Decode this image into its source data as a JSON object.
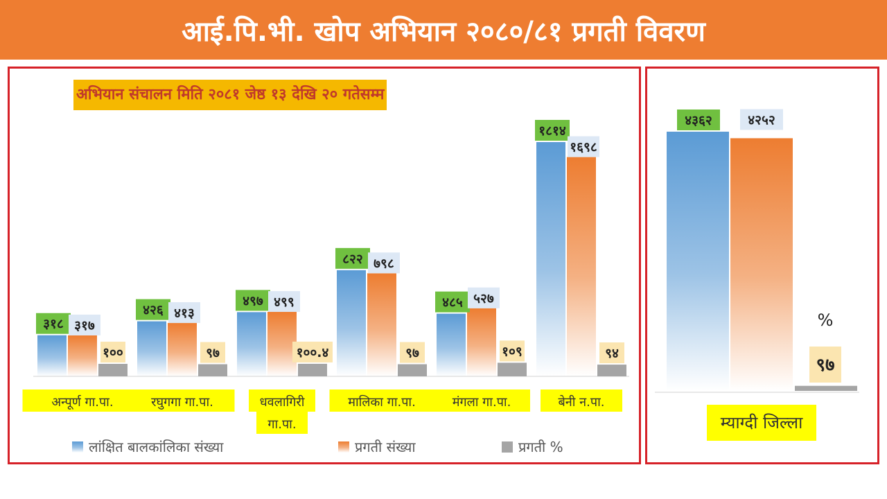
{
  "header": {
    "title": "आई.पि.भी. खोप अभियान २०८०/८१ प्रगती विवरण"
  },
  "colors": {
    "header_bg": "#ee7d31",
    "panel_border": "#d62128",
    "target": "#5b9bd5",
    "progress": "#ed7d31",
    "percent": "#a5a5a5",
    "label_highlight": "#ffff00",
    "target_label_bg": "#70c040",
    "progress_label_bg": "#dde8f5",
    "percent_label_bg": "#fbe5b0"
  },
  "chart_data": [
    {
      "type": "bar",
      "title": "अभियान संचालन मिति २०८१ जेष्ठ १३ देखि २० गतेसम्म",
      "categories": [
        "अन्पूर्ण गा.पा.",
        "रघुगगा गा.पा.",
        "धवलागिरी गा.पा.",
        "मालिका गा.पा.",
        "मंगला गा.पा.",
        "बेनी न.पा."
      ],
      "legend_position": "bottom",
      "grid": false,
      "series": [
        {
          "name": "लांक्षित बालकांलिका संख्या",
          "values": [
            318,
            426,
            497,
            822,
            485,
            1814
          ],
          "labels": [
            "३१८",
            "४२६",
            "४९७",
            "८२२",
            "४८५",
            "१८१४"
          ]
        },
        {
          "name": "प्रगती संख्या",
          "values": [
            317,
            413,
            499,
            798,
            527,
            1698
          ],
          "labels": [
            "३१७",
            "४१३",
            "४९९",
            "७९८",
            "५२७",
            "१६९८"
          ]
        },
        {
          "name": "प्रगती %",
          "values": [
            100,
            97,
            100.4,
            97,
            109,
            94
          ],
          "labels": [
            "१००",
            "९७",
            "१००.४",
            "९७",
            "१०९",
            "९४"
          ]
        }
      ]
    },
    {
      "type": "bar",
      "categories": [
        "म्याग्दी जिल्ला"
      ],
      "grid": false,
      "percent_symbol": "%",
      "series": [
        {
          "values": [
            4362
          ],
          "labels": [
            "४३६२"
          ]
        },
        {
          "values": [
            4252
          ],
          "labels": [
            "४२५२"
          ]
        },
        {
          "values": [
            97
          ],
          "labels": [
            "९७"
          ]
        }
      ]
    }
  ]
}
